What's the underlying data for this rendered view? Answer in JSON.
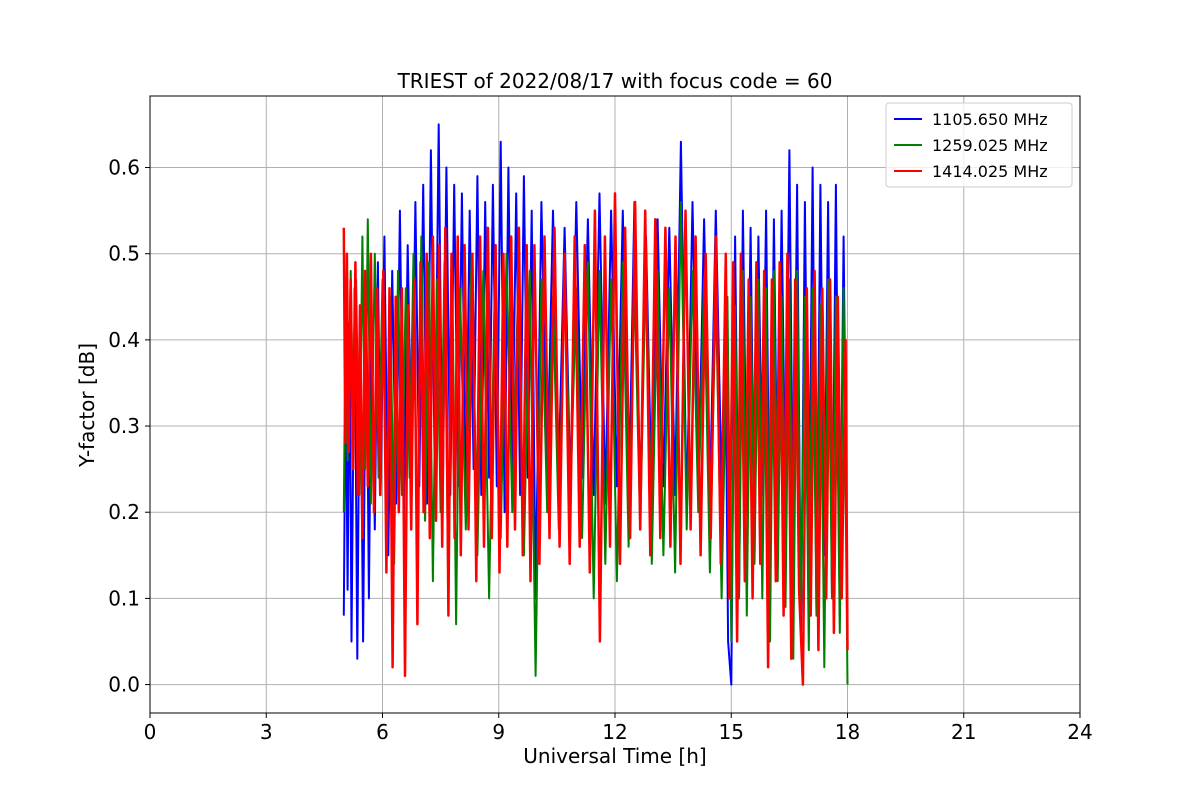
{
  "chart_data": {
    "type": "line",
    "title": "TRIEST of 2022/08/17 with focus code = 60",
    "xlabel": "Universal Time [h]",
    "ylabel": "Y-factor [dB]",
    "xlim": [
      0,
      24
    ],
    "ylim": [
      -0.033,
      0.683
    ],
    "xticks": [
      "0",
      "3",
      "6",
      "9",
      "12",
      "15",
      "18",
      "21",
      "24"
    ],
    "yticks": [
      "0.0",
      "0.1",
      "0.2",
      "0.3",
      "0.4",
      "0.5",
      "0.6"
    ],
    "grid": true,
    "legend_position": "top-right",
    "series": [
      {
        "name": "1105.650 MHz",
        "color": "#0000ff",
        "x": [
          5.0,
          5.05,
          5.1,
          5.15,
          5.2,
          5.28,
          5.35,
          5.42,
          5.5,
          5.58,
          5.65,
          5.72,
          5.8,
          5.88,
          5.95,
          6.05,
          6.15,
          6.25,
          6.35,
          6.45,
          6.55,
          6.65,
          6.75,
          6.85,
          6.95,
          7.05,
          7.15,
          7.25,
          7.35,
          7.45,
          7.55,
          7.65,
          7.75,
          7.85,
          7.95,
          8.05,
          8.15,
          8.25,
          8.35,
          8.45,
          8.55,
          8.65,
          8.75,
          8.85,
          8.95,
          9.05,
          9.15,
          9.25,
          9.35,
          9.45,
          9.55,
          9.65,
          9.75,
          9.85,
          9.95,
          10.1,
          10.25,
          10.4,
          10.55,
          10.7,
          10.85,
          11.0,
          11.15,
          11.3,
          11.45,
          11.6,
          11.75,
          11.9,
          12.05,
          12.2,
          12.35,
          12.5,
          12.65,
          12.8,
          12.95,
          13.1,
          13.25,
          13.4,
          13.55,
          13.7,
          13.85,
          14.0,
          14.15,
          14.3,
          14.45,
          14.6,
          14.75,
          14.85,
          14.92,
          15.0,
          15.1,
          15.2,
          15.3,
          15.4,
          15.5,
          15.6,
          15.7,
          15.8,
          15.9,
          16.0,
          16.1,
          16.2,
          16.3,
          16.4,
          16.5,
          16.6,
          16.7,
          16.8,
          16.9,
          17.0,
          17.1,
          17.2,
          17.3,
          17.4,
          17.5,
          17.6,
          17.7,
          17.8,
          17.9,
          18.0
        ],
        "y": [
          0.08,
          0.38,
          0.11,
          0.42,
          0.05,
          0.46,
          0.03,
          0.44,
          0.05,
          0.47,
          0.1,
          0.43,
          0.18,
          0.49,
          0.22,
          0.52,
          0.15,
          0.48,
          0.21,
          0.55,
          0.19,
          0.51,
          0.25,
          0.56,
          0.23,
          0.58,
          0.21,
          0.62,
          0.24,
          0.65,
          0.2,
          0.6,
          0.22,
          0.58,
          0.23,
          0.57,
          0.21,
          0.55,
          0.25,
          0.59,
          0.22,
          0.56,
          0.24,
          0.58,
          0.23,
          0.63,
          0.2,
          0.6,
          0.25,
          0.57,
          0.22,
          0.59,
          0.24,
          0.55,
          0.1,
          0.56,
          0.24,
          0.55,
          0.25,
          0.53,
          0.23,
          0.56,
          0.24,
          0.54,
          0.22,
          0.57,
          0.21,
          0.55,
          0.23,
          0.55,
          0.19,
          0.56,
          0.22,
          0.52,
          0.21,
          0.54,
          0.23,
          0.53,
          0.22,
          0.63,
          0.2,
          0.56,
          0.22,
          0.54,
          0.21,
          0.55,
          0.23,
          0.4,
          0.05,
          0.0,
          0.52,
          0.1,
          0.55,
          0.2,
          0.53,
          0.15,
          0.52,
          0.22,
          0.55,
          0.12,
          0.54,
          0.18,
          0.55,
          0.2,
          0.62,
          0.15,
          0.58,
          0.05,
          0.56,
          0.13,
          0.6,
          0.08,
          0.58,
          0.15,
          0.56,
          0.1,
          0.58,
          0.08,
          0.52,
          0.06
        ],
        "width": 2
      },
      {
        "name": "1259.025 MHz",
        "color": "#008000",
        "x": [
          5.0,
          5.05,
          5.1,
          5.18,
          5.25,
          5.32,
          5.4,
          5.48,
          5.55,
          5.62,
          5.7,
          5.8,
          5.9,
          6.0,
          6.1,
          6.2,
          6.3,
          6.4,
          6.5,
          6.6,
          6.7,
          6.8,
          6.9,
          7.0,
          7.1,
          7.2,
          7.3,
          7.4,
          7.5,
          7.6,
          7.7,
          7.8,
          7.9,
          8.0,
          8.15,
          8.3,
          8.45,
          8.6,
          8.75,
          8.9,
          9.05,
          9.2,
          9.35,
          9.5,
          9.65,
          9.8,
          9.95,
          10.1,
          10.25,
          10.4,
          10.55,
          10.7,
          10.85,
          11.0,
          11.15,
          11.3,
          11.45,
          11.6,
          11.75,
          11.9,
          12.05,
          12.2,
          12.35,
          12.5,
          12.65,
          12.8,
          12.95,
          13.1,
          13.25,
          13.4,
          13.55,
          13.7,
          13.85,
          14.0,
          14.15,
          14.3,
          14.45,
          14.6,
          14.75,
          14.9,
          15.0,
          15.1,
          15.2,
          15.3,
          15.4,
          15.5,
          15.6,
          15.7,
          15.8,
          15.9,
          16.0,
          16.1,
          16.2,
          16.3,
          16.4,
          16.5,
          16.6,
          16.7,
          16.8,
          16.9,
          17.0,
          17.1,
          17.2,
          17.3,
          17.4,
          17.5,
          17.6,
          17.7,
          17.8,
          17.9,
          18.0
        ],
        "y": [
          0.2,
          0.44,
          0.26,
          0.48,
          0.28,
          0.47,
          0.22,
          0.52,
          0.25,
          0.54,
          0.21,
          0.5,
          0.24,
          0.47,
          0.2,
          0.45,
          0.14,
          0.48,
          0.22,
          0.46,
          0.24,
          0.5,
          0.14,
          0.52,
          0.19,
          0.49,
          0.12,
          0.47,
          0.2,
          0.49,
          0.1,
          0.48,
          0.07,
          0.46,
          0.18,
          0.5,
          0.15,
          0.48,
          0.1,
          0.47,
          0.17,
          0.5,
          0.2,
          0.46,
          0.15,
          0.48,
          0.01,
          0.47,
          0.2,
          0.45,
          0.18,
          0.48,
          0.22,
          0.46,
          0.17,
          0.49,
          0.1,
          0.48,
          0.14,
          0.47,
          0.12,
          0.49,
          0.16,
          0.47,
          0.18,
          0.5,
          0.14,
          0.48,
          0.15,
          0.46,
          0.13,
          0.56,
          0.18,
          0.48,
          0.2,
          0.47,
          0.13,
          0.46,
          0.1,
          0.45,
          0.05,
          0.44,
          0.1,
          0.48,
          0.08,
          0.45,
          0.14,
          0.47,
          0.1,
          0.46,
          0.05,
          0.48,
          0.12,
          0.45,
          0.09,
          0.47,
          0.03,
          0.48,
          0.08,
          0.45,
          0.04,
          0.46,
          0.08,
          0.44,
          0.02,
          0.47,
          0.1,
          0.45,
          0.06,
          0.46,
          0.0
        ],
        "width": 2
      },
      {
        "name": "1414.025 MHz",
        "color": "#ff0000",
        "x": [
          5.0,
          5.04,
          5.08,
          5.13,
          5.18,
          5.24,
          5.3,
          5.36,
          5.42,
          5.48,
          5.55,
          5.62,
          5.7,
          5.78,
          5.86,
          5.94,
          6.02,
          6.1,
          6.18,
          6.26,
          6.34,
          6.42,
          6.5,
          6.58,
          6.66,
          6.74,
          6.82,
          6.9,
          6.98,
          7.06,
          7.14,
          7.22,
          7.3,
          7.38,
          7.46,
          7.54,
          7.62,
          7.7,
          7.78,
          7.86,
          7.94,
          8.02,
          8.12,
          8.22,
          8.32,
          8.42,
          8.52,
          8.62,
          8.72,
          8.82,
          8.92,
          9.02,
          9.12,
          9.22,
          9.32,
          9.42,
          9.52,
          9.62,
          9.72,
          9.82,
          9.92,
          10.05,
          10.18,
          10.31,
          10.44,
          10.57,
          10.7,
          10.83,
          10.96,
          11.09,
          11.22,
          11.35,
          11.48,
          11.61,
          11.74,
          11.87,
          12.0,
          12.13,
          12.26,
          12.39,
          12.52,
          12.65,
          12.78,
          12.91,
          13.04,
          13.17,
          13.3,
          13.43,
          13.56,
          13.69,
          13.82,
          13.95,
          14.08,
          14.21,
          14.34,
          14.47,
          14.6,
          14.73,
          14.86,
          14.95,
          15.05,
          15.15,
          15.25,
          15.35,
          15.45,
          15.55,
          15.65,
          15.75,
          15.85,
          15.95,
          16.05,
          16.15,
          16.25,
          16.35,
          16.45,
          16.55,
          16.65,
          16.75,
          16.85,
          16.95,
          17.05,
          17.15,
          17.25,
          17.35,
          17.45,
          17.55,
          17.65,
          17.75,
          17.85,
          17.95,
          18.0
        ],
        "y": [
          0.53,
          0.28,
          0.5,
          0.27,
          0.47,
          0.25,
          0.49,
          0.22,
          0.44,
          0.17,
          0.48,
          0.23,
          0.5,
          0.2,
          0.46,
          0.22,
          0.48,
          0.13,
          0.46,
          0.02,
          0.45,
          0.2,
          0.46,
          0.01,
          0.44,
          0.18,
          0.47,
          0.07,
          0.49,
          0.2,
          0.5,
          0.17,
          0.52,
          0.19,
          0.51,
          0.16,
          0.53,
          0.08,
          0.5,
          0.17,
          0.52,
          0.15,
          0.51,
          0.18,
          0.5,
          0.12,
          0.52,
          0.16,
          0.53,
          0.17,
          0.51,
          0.13,
          0.5,
          0.16,
          0.52,
          0.18,
          0.53,
          0.15,
          0.51,
          0.12,
          0.51,
          0.14,
          0.52,
          0.17,
          0.53,
          0.16,
          0.5,
          0.14,
          0.52,
          0.16,
          0.51,
          0.13,
          0.55,
          0.05,
          0.52,
          0.16,
          0.57,
          0.14,
          0.53,
          0.17,
          0.56,
          0.18,
          0.55,
          0.15,
          0.54,
          0.17,
          0.53,
          0.16,
          0.52,
          0.14,
          0.55,
          0.18,
          0.52,
          0.15,
          0.5,
          0.17,
          0.52,
          0.14,
          0.5,
          0.1,
          0.49,
          0.05,
          0.5,
          0.12,
          0.47,
          0.1,
          0.49,
          0.14,
          0.48,
          0.02,
          0.47,
          0.12,
          0.49,
          0.08,
          0.5,
          0.03,
          0.47,
          0.11,
          0.0,
          0.46,
          0.08,
          0.48,
          0.04,
          0.46,
          0.1,
          0.47,
          0.06,
          0.45,
          0.1,
          0.4,
          0.04
        ],
        "width": 2.5
      }
    ]
  }
}
